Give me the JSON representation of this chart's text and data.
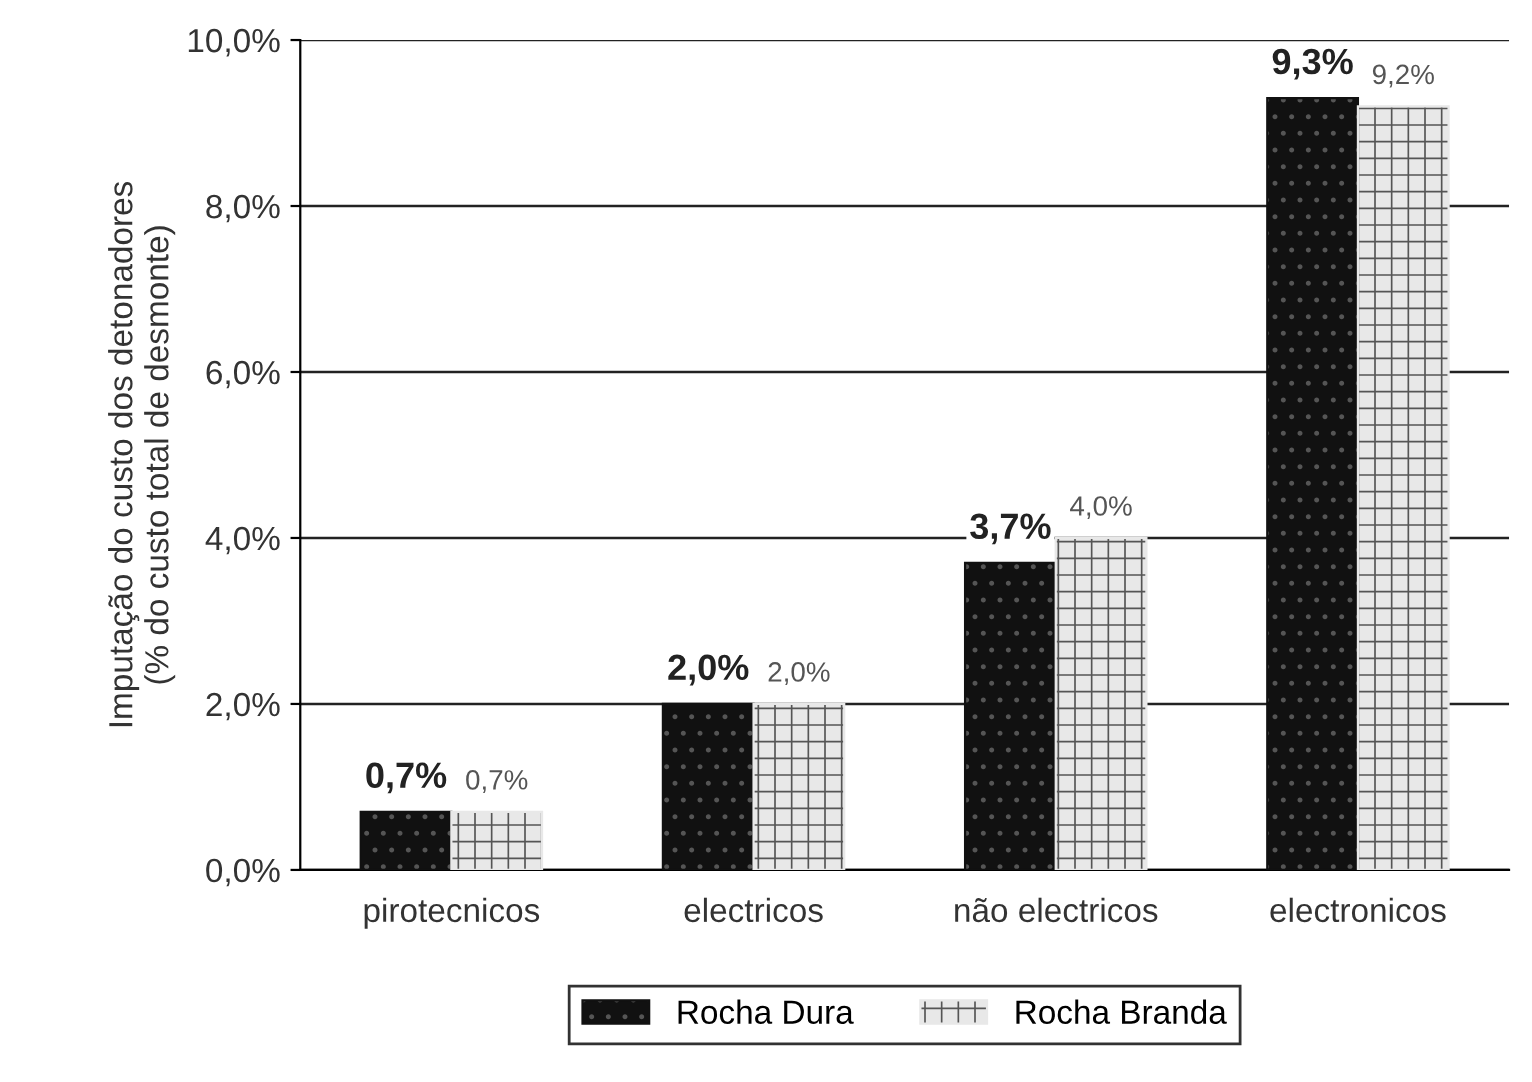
{
  "chart_data": {
    "type": "bar",
    "ylabel": "Imputação do custo dos detonadores\n(% do custo total de desmonte)",
    "categories": [
      "pirotecnicos",
      "electricos",
      "não electricos",
      "electronicos"
    ],
    "series": [
      {
        "name": "Rocha Dura",
        "color": "#111111",
        "values": [
          0.7,
          2.0,
          3.7,
          9.3
        ],
        "value_labels": [
          "0,7%",
          "2,0%",
          "3,7%",
          "9,3%"
        ]
      },
      {
        "name": "Rocha Branda",
        "color": "#e8e8e8",
        "values": [
          0.7,
          2.0,
          4.0,
          9.2
        ],
        "value_labels": [
          "0,7%",
          "2,0%",
          "4,0%",
          "9,2%"
        ]
      }
    ],
    "ylim": [
      0,
      10
    ],
    "yticks": [
      {
        "value": 0,
        "label": "0,0%"
      },
      {
        "value": 2,
        "label": "2,0%"
      },
      {
        "value": 4,
        "label": "4,0%"
      },
      {
        "value": 6,
        "label": "6,0%"
      },
      {
        "value": 8,
        "label": "8,0%"
      },
      {
        "value": 10,
        "label": "10,0%"
      }
    ],
    "grid": "y",
    "legend": "bottom"
  }
}
